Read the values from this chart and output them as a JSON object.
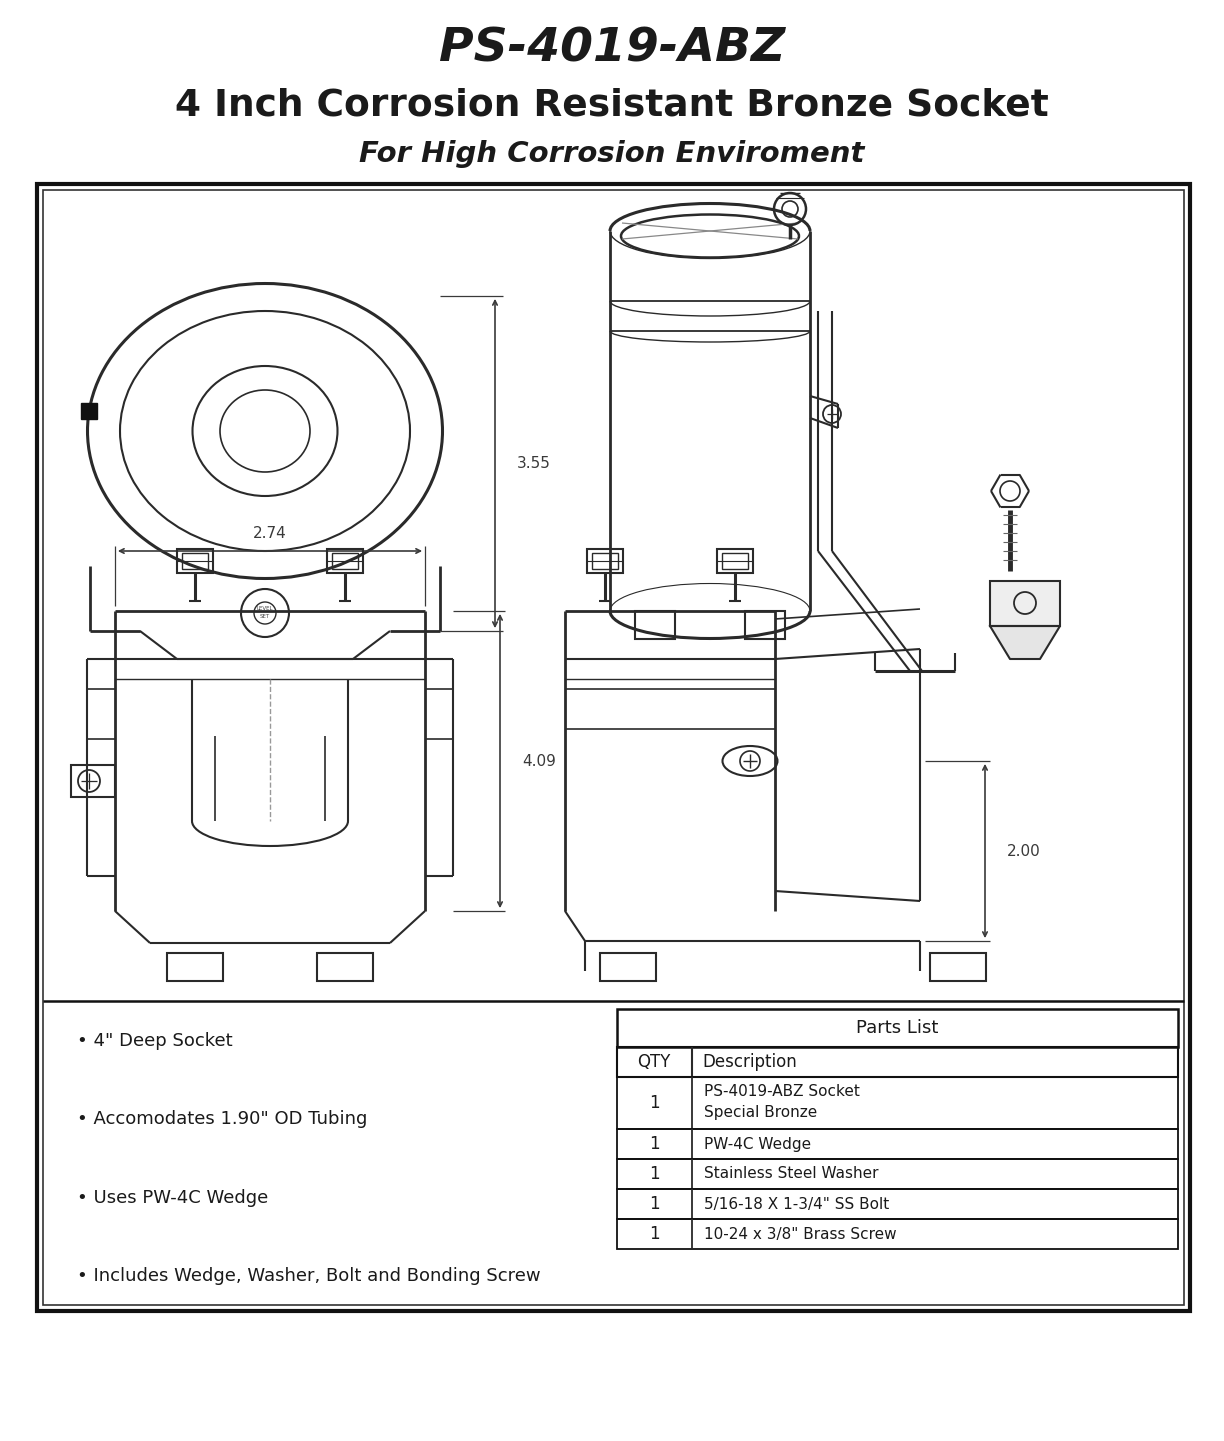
{
  "title1": "PS-4019-ABZ",
  "title2": "4 Inch Corrosion Resistant Bronze Socket",
  "title3": "For High Corrosion Enviroment",
  "dim1": "3.55",
  "dim2": "2.74",
  "dim3": "4.09",
  "dim4": "2.00",
  "bullet_points": [
    "• 4\" Deep Socket",
    "• Accomodates 1.90\" OD Tubing",
    "• Uses PW-4C Wedge",
    "• Includes Wedge, Washer, Bolt and Bonding Screw"
  ],
  "parts_list_header": "Parts List",
  "parts_list_col1_header": "QTY",
  "parts_list_col2_header": "Description",
  "parts_list_rows": [
    [
      "1",
      "PS-4019-ABZ Socket\nSpecial Bronze"
    ],
    [
      "1",
      "PW-4C Wedge"
    ],
    [
      "1",
      "Stainless Steel Washer"
    ],
    [
      "1",
      "5/16-18 X 1-3/4\" SS Bolt"
    ],
    [
      "1",
      "10-24 x 3/8\" Brass Screw"
    ]
  ],
  "bg_color": "#ffffff",
  "text_color": "#1a1a1a",
  "line_color": "#2a2a2a",
  "dim_color": "#3a3a3a",
  "gray_color": "#888888"
}
